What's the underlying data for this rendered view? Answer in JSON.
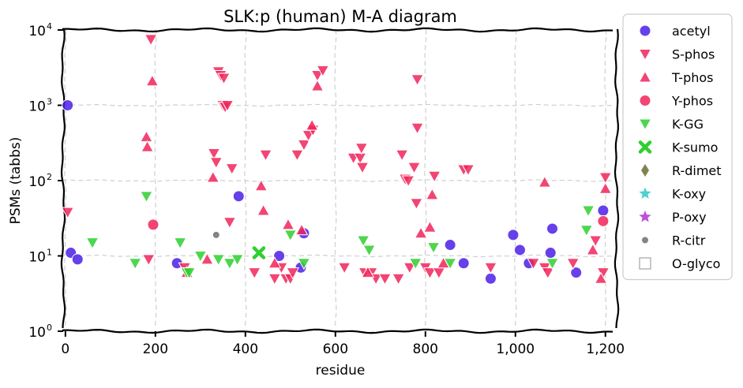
{
  "chart_data": {
    "type": "scatter",
    "title": "SLK:p (human) M-A diagram",
    "xlabel": "residue",
    "ylabel": "PSMs (tabbs)",
    "xlim": [
      -5,
      1225
    ],
    "ylim": [
      1,
      10000
    ],
    "yscale": "log",
    "grid": true,
    "legend_position": "right, outside plot",
    "x_ticks": [
      {
        "value": 0,
        "label": "0"
      },
      {
        "value": 200,
        "label": "200"
      },
      {
        "value": 400,
        "label": "400"
      },
      {
        "value": 600,
        "label": "600"
      },
      {
        "value": 800,
        "label": "800"
      },
      {
        "value": 1000,
        "label": "1,000"
      },
      {
        "value": 1200,
        "label": "1,200"
      }
    ],
    "y_ticks": [
      {
        "value": 1,
        "base": "10",
        "exp": "0"
      },
      {
        "value": 10,
        "base": "10",
        "exp": "1"
      },
      {
        "value": 100,
        "base": "10",
        "exp": "2"
      },
      {
        "value": 1000,
        "base": "10",
        "exp": "3"
      },
      {
        "value": 10000,
        "base": "10",
        "exp": "4"
      }
    ],
    "series": [
      {
        "name": "acetyl",
        "marker": "circle",
        "color": "#4b1fe6",
        "points": [
          [
            5,
            1000
          ],
          [
            12,
            11
          ],
          [
            27,
            9
          ],
          [
            248,
            8
          ],
          [
            385,
            62
          ],
          [
            475,
            10
          ],
          [
            523,
            7
          ],
          [
            530,
            20
          ],
          [
            855,
            14
          ],
          [
            885,
            8
          ],
          [
            945,
            5
          ],
          [
            995,
            19
          ],
          [
            1010,
            12
          ],
          [
            1030,
            8
          ],
          [
            1078,
            11
          ],
          [
            1082,
            23
          ],
          [
            1135,
            6
          ],
          [
            1195,
            40
          ]
        ]
      },
      {
        "name": "S-phos",
        "marker": "triangle-down",
        "color": "#f0245a",
        "points": [
          [
            5,
            38
          ],
          [
            185,
            9
          ],
          [
            190,
            7500
          ],
          [
            265,
            7
          ],
          [
            330,
            230
          ],
          [
            335,
            175
          ],
          [
            340,
            2800
          ],
          [
            345,
            2500
          ],
          [
            350,
            1000
          ],
          [
            352,
            2300
          ],
          [
            355,
            950
          ],
          [
            360,
            1000
          ],
          [
            365,
            28
          ],
          [
            370,
            145
          ],
          [
            420,
            6
          ],
          [
            445,
            220
          ],
          [
            465,
            5
          ],
          [
            480,
            7
          ],
          [
            490,
            5
          ],
          [
            500,
            5
          ],
          [
            505,
            6
          ],
          [
            515,
            220
          ],
          [
            530,
            300
          ],
          [
            540,
            400
          ],
          [
            550,
            470
          ],
          [
            560,
            2500
          ],
          [
            572,
            2900
          ],
          [
            620,
            7
          ],
          [
            640,
            200
          ],
          [
            655,
            200
          ],
          [
            658,
            270
          ],
          [
            660,
            150
          ],
          [
            665,
            6
          ],
          [
            680,
            6
          ],
          [
            690,
            5
          ],
          [
            710,
            5
          ],
          [
            740,
            5
          ],
          [
            748,
            220
          ],
          [
            755,
            105
          ],
          [
            762,
            100
          ],
          [
            765,
            7
          ],
          [
            775,
            150
          ],
          [
            780,
            50
          ],
          [
            782,
            2200
          ],
          [
            782,
            500
          ],
          [
            800,
            7
          ],
          [
            810,
            6
          ],
          [
            820,
            115
          ],
          [
            830,
            6
          ],
          [
            885,
            140
          ],
          [
            895,
            140
          ],
          [
            945,
            7
          ],
          [
            1040,
            8
          ],
          [
            1065,
            7
          ],
          [
            1072,
            6
          ],
          [
            1128,
            8
          ],
          [
            1178,
            16
          ],
          [
            1195,
            6
          ],
          [
            1200,
            110
          ]
        ]
      },
      {
        "name": "T-phos",
        "marker": "triangle-up",
        "color": "#f0245a",
        "points": [
          [
            180,
            380
          ],
          [
            182,
            280
          ],
          [
            193,
            2100
          ],
          [
            270,
            6
          ],
          [
            315,
            9
          ],
          [
            328,
            110
          ],
          [
            435,
            85
          ],
          [
            440,
            40
          ],
          [
            465,
            8
          ],
          [
            495,
            26
          ],
          [
            525,
            22
          ],
          [
            548,
            540
          ],
          [
            560,
            1800
          ],
          [
            672,
            6
          ],
          [
            790,
            20
          ],
          [
            810,
            24
          ],
          [
            815,
            65
          ],
          [
            840,
            8
          ],
          [
            1065,
            95
          ],
          [
            1172,
            12
          ],
          [
            1190,
            5
          ],
          [
            1200,
            78
          ]
        ]
      },
      {
        "name": "Y-phos",
        "marker": "circle",
        "color": "#f0245a",
        "points": [
          [
            195,
            26
          ],
          [
            1195,
            29
          ]
        ]
      },
      {
        "name": "K-GG",
        "marker": "triangle-down",
        "color": "#2fcf2f",
        "points": [
          [
            60,
            15
          ],
          [
            155,
            8
          ],
          [
            180,
            62
          ],
          [
            255,
            15
          ],
          [
            270,
            6
          ],
          [
            275,
            6
          ],
          [
            300,
            10
          ],
          [
            340,
            9
          ],
          [
            365,
            8
          ],
          [
            382,
            9
          ],
          [
            500,
            19
          ],
          [
            530,
            8
          ],
          [
            662,
            16
          ],
          [
            675,
            12
          ],
          [
            778,
            8
          ],
          [
            818,
            13
          ],
          [
            855,
            8
          ],
          [
            1082,
            8
          ],
          [
            1158,
            22
          ],
          [
            1162,
            40
          ]
        ]
      },
      {
        "name": "K-sumo",
        "marker": "x",
        "color": "#2fcf2f",
        "points": [
          [
            430,
            11
          ]
        ]
      },
      {
        "name": "R-dimet",
        "marker": "diamond",
        "color": "#6b6b34",
        "points": []
      },
      {
        "name": "K-oxy",
        "marker": "star",
        "color": "#2ec9c9",
        "points": []
      },
      {
        "name": "P-oxy",
        "marker": "star",
        "color": "#b030d6",
        "points": []
      },
      {
        "name": "R-citr",
        "marker": "small-circle",
        "color": "#6f6f6f",
        "points": [
          [
            335,
            19
          ]
        ]
      },
      {
        "name": "O-glyco",
        "marker": "square",
        "color": "#aaaaaa",
        "points": []
      }
    ]
  }
}
